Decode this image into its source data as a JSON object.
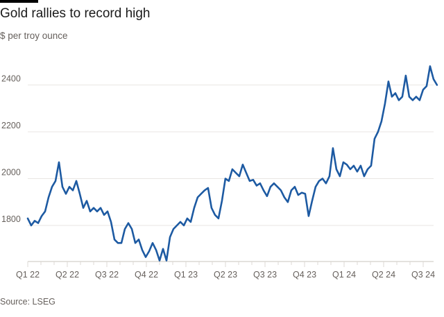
{
  "chart_data": {
    "type": "line",
    "title": "Gold rallies to record high",
    "subtitle": "$ per troy ounce",
    "source": "Source: LSEG",
    "xlabel": "",
    "ylabel": "$ per troy ounce",
    "ylim": [
      1646,
      2560
    ],
    "yticks": [
      1800,
      2000,
      2200,
      2400
    ],
    "xticks": [
      "Q1 22",
      "Q2 22",
      "Q3 22",
      "Q4 22",
      "Q1 23",
      "Q2 23",
      "Q3 23",
      "Q4 23",
      "Q1 24",
      "Q2 24",
      "Q3 24"
    ],
    "x_unit": "quarters since Q1 22",
    "x_start": 0,
    "x_step": 0.0877,
    "grid": true,
    "line_color": "#1d5aa2",
    "series": [
      {
        "name": "Gold price",
        "values": [
          1830,
          1800,
          1820,
          1810,
          1840,
          1860,
          1920,
          1965,
          1990,
          2070,
          1965,
          1935,
          1965,
          1950,
          1990,
          1935,
          1875,
          1905,
          1860,
          1875,
          1860,
          1875,
          1845,
          1860,
          1815,
          1740,
          1725,
          1725,
          1785,
          1810,
          1785,
          1725,
          1740,
          1695,
          1665,
          1690,
          1725,
          1695,
          1650,
          1700,
          1650,
          1750,
          1785,
          1800,
          1815,
          1800,
          1830,
          1815,
          1875,
          1920,
          1935,
          1950,
          1960,
          1875,
          1845,
          1830,
          1905,
          2000,
          1990,
          2040,
          2025,
          2010,
          2060,
          2025,
          1990,
          1995,
          1970,
          1980,
          1950,
          1925,
          1965,
          1980,
          1965,
          1950,
          1920,
          1900,
          1950,
          1965,
          1930,
          1940,
          1935,
          1840,
          1905,
          1965,
          1990,
          2000,
          1980,
          2010,
          2130,
          2040,
          2010,
          2070,
          2060,
          2040,
          2055,
          2030,
          2055,
          2010,
          2040,
          2055,
          2170,
          2200,
          2245,
          2320,
          2415,
          2350,
          2365,
          2335,
          2350,
          2440,
          2350,
          2335,
          2350,
          2335,
          2380,
          2395,
          2480,
          2425,
          2400
        ]
      }
    ]
  }
}
